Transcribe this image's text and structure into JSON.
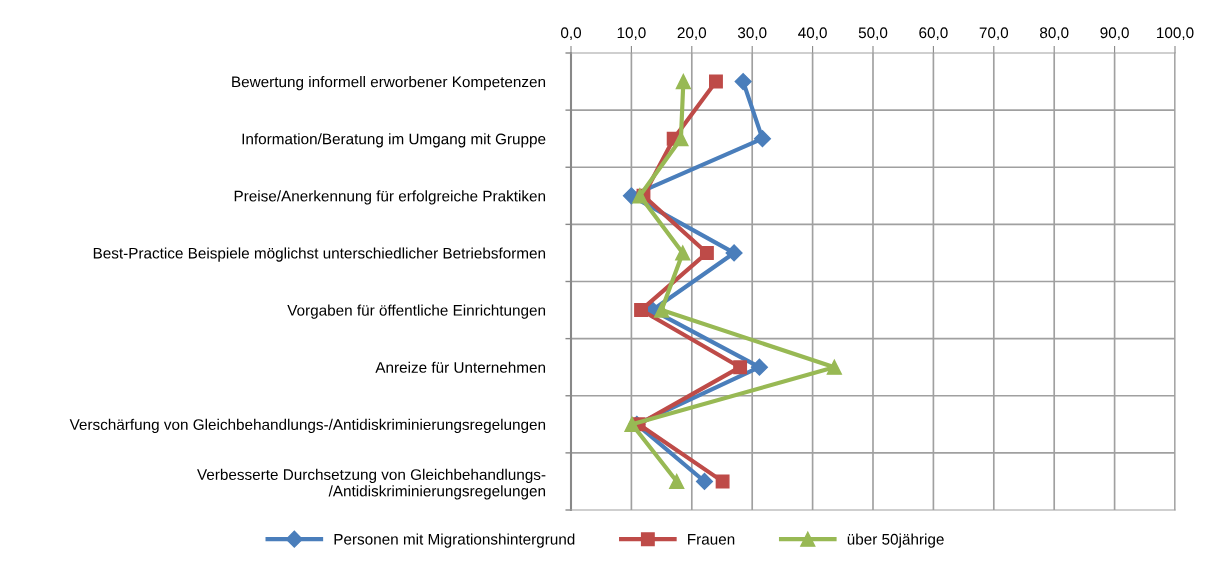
{
  "chart_data": {
    "type": "line",
    "orientation": "horizontal",
    "categories": [
      "Bewertung informell erworbener Kompetenzen",
      "Information/Beratung im Umgang mit Gruppe",
      "Preise/Anerkennung für erfolgreiche Praktiken",
      "Best-Practice Beispiele möglichst unterschiedlicher Betriebsformen",
      "Vorgaben für öffentliche Einrichtungen",
      "Anreize für Unternehmen",
      "Verschärfung von Gleichbehandlungs-/Antidiskriminierungsregelungen",
      "Verbesserte Durchsetzung von Gleichbehandlungs-\n/Antidiskriminierungsregelungen"
    ],
    "series": [
      {
        "name": "Personen mit Migrationshintergrund",
        "color": "#4a7ebb",
        "marker": "diamond",
        "values": [
          28.5,
          31.7,
          10.0,
          27.0,
          13.5,
          31.2,
          10.9,
          22.1
        ]
      },
      {
        "name": "Frauen",
        "color": "#be4b48",
        "marker": "square",
        "values": [
          24.0,
          17.0,
          12.0,
          22.5,
          11.6,
          28.0,
          11.2,
          25.1
        ]
      },
      {
        "name": "über 50jährige",
        "color": "#98b954",
        "marker": "triangle",
        "values": [
          18.6,
          18.2,
          11.4,
          18.5,
          15.0,
          43.6,
          10.1,
          17.5
        ]
      }
    ],
    "xlim": [
      0,
      100
    ],
    "xticks": [
      {
        "value": 0,
        "label": "0,0"
      },
      {
        "value": 10,
        "label": "10,0"
      },
      {
        "value": 20,
        "label": "20,0"
      },
      {
        "value": 30,
        "label": "30,0"
      },
      {
        "value": 40,
        "label": "40,0"
      },
      {
        "value": 50,
        "label": "50,0"
      },
      {
        "value": 60,
        "label": "60,0"
      },
      {
        "value": 70,
        "label": "70,0"
      },
      {
        "value": 80,
        "label": "80,0"
      },
      {
        "value": 90,
        "label": "90,0"
      },
      {
        "value": 100,
        "label": "100,0"
      }
    ],
    "grid": true,
    "legend": "bottom"
  }
}
